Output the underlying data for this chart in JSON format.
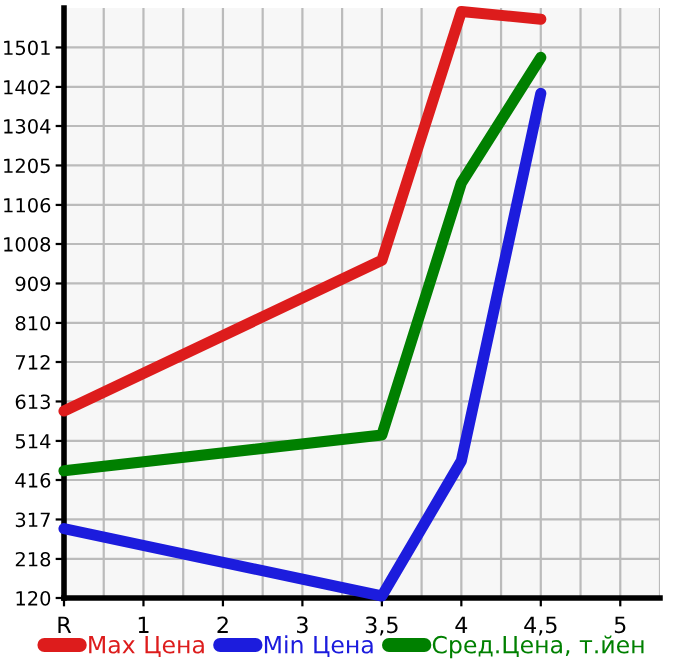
{
  "chart_data": {
    "type": "line",
    "categories": [
      "R",
      "1",
      "2",
      "3",
      "3,5",
      "4",
      "4,5",
      "5"
    ],
    "series": [
      {
        "name": "Max Цена",
        "color": "#dd1c1c",
        "values": [
          589,
          null,
          null,
          null,
          967,
          1591,
          1572,
          null
        ]
      },
      {
        "name": "Min Цена",
        "color": "#1c1cdd",
        "values": [
          294,
          null,
          null,
          null,
          125,
          464,
          1386,
          null
        ]
      },
      {
        "name": "Сред.Цена, т.йен",
        "color": "#008000",
        "values": [
          439,
          null,
          null,
          null,
          529,
          1161,
          1476,
          null
        ]
      }
    ],
    "ylim": [
      120,
      1600
    ],
    "yticks": [
      120,
      218,
      317,
      416,
      514,
      613,
      712,
      810,
      909,
      1008,
      1106,
      1205,
      1304,
      1402,
      1501
    ],
    "grid": true,
    "legend": "bottom",
    "marker": "none",
    "line_style": "solid"
  }
}
